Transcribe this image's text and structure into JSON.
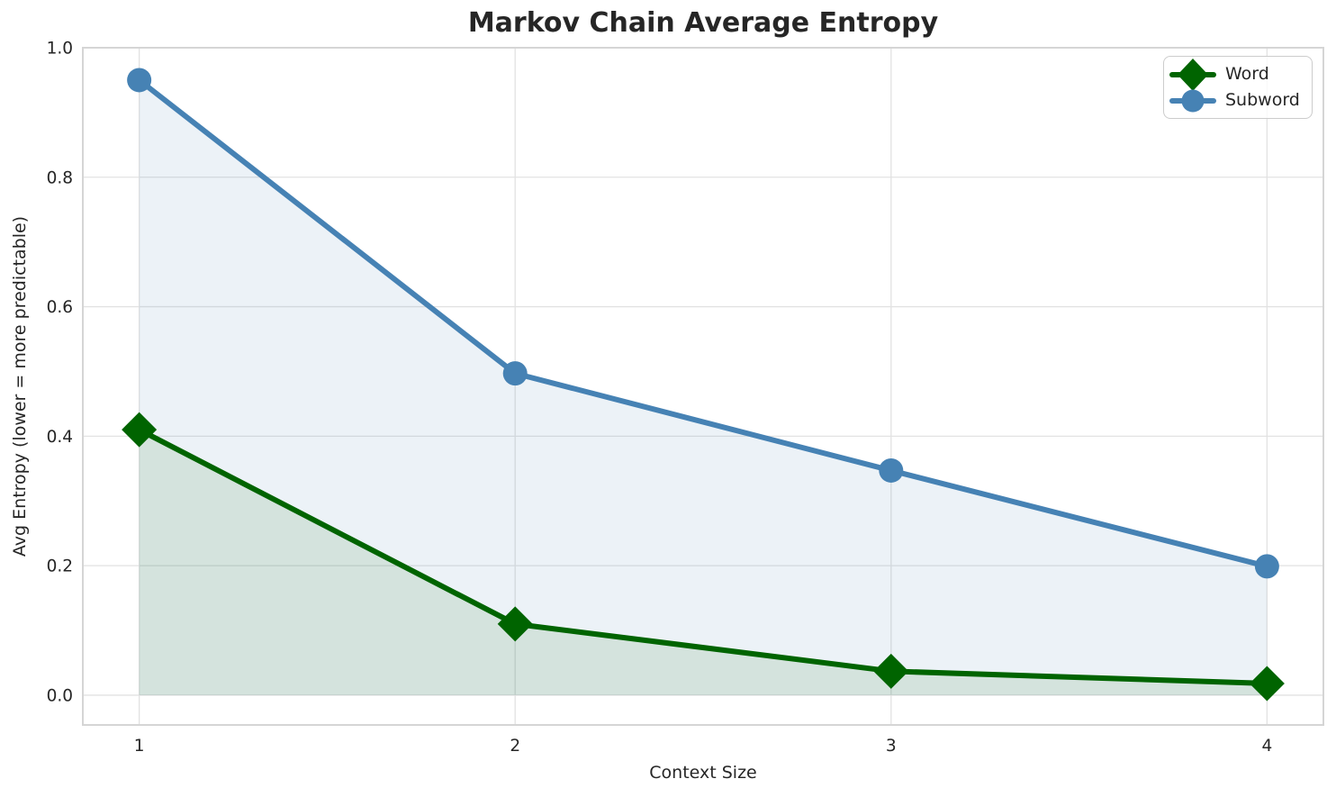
{
  "chart_data": {
    "type": "line",
    "title": "Markov Chain Average Entropy",
    "xlabel": "Context Size",
    "ylabel": "Avg Entropy (lower = more predictable)",
    "x": [
      1,
      2,
      3,
      4
    ],
    "series": [
      {
        "name": "Word",
        "values": [
          0.41,
          0.11,
          0.037,
          0.018
        ],
        "color": "#006400",
        "fill": "rgba(0,100,0,0.10)",
        "marker": "diamond"
      },
      {
        "name": "Subword",
        "values": [
          0.95,
          0.497,
          0.347,
          0.199
        ],
        "color": "#4682b4",
        "fill": "rgba(70,130,180,0.10)",
        "marker": "circle"
      }
    ],
    "xticks": [
      1,
      2,
      3,
      4
    ],
    "xtick_labels": [
      "1",
      "2",
      "3",
      "4"
    ],
    "yticks": [
      0.0,
      0.2,
      0.4,
      0.6,
      0.8,
      1.0
    ],
    "ytick_labels": [
      "0.0",
      "0.2",
      "0.4",
      "0.6",
      "0.8",
      "1.0"
    ],
    "xlim": [
      0.85,
      4.15
    ],
    "ylim": [
      -0.046,
      1.0
    ],
    "grid": true,
    "area_fill": true,
    "area_baseline": 0.0,
    "legend_position": "upper right",
    "style": {
      "text_color": "#262626",
      "grid_color": "#e2e2e2",
      "spine_color": "#d5d5d5",
      "background": "#ffffff"
    }
  },
  "legend": {
    "entries": [
      {
        "label": "Word"
      },
      {
        "label": "Subword"
      }
    ]
  }
}
